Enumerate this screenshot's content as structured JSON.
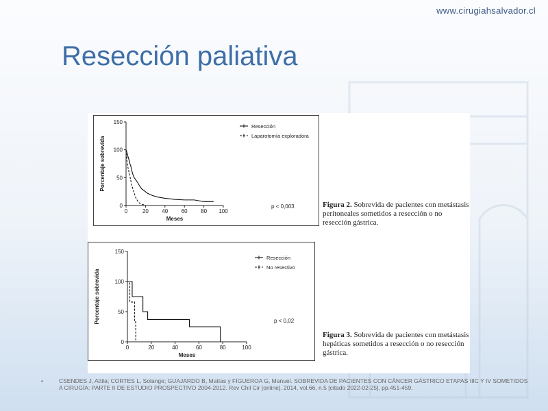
{
  "site": {
    "url": "www.cirugiahsalvador.cl"
  },
  "slide": {
    "title": "Resección paliativa"
  },
  "chart_data": [
    {
      "type": "line",
      "xlabel": "Meses",
      "ylabel": "Porcentaje sobrevida",
      "xlim": [
        0,
        100
      ],
      "ylim": [
        0,
        150
      ],
      "xticks": [
        "0",
        "20",
        "40",
        "60",
        "80",
        "100"
      ],
      "yticks": [
        "0",
        "50",
        "100",
        "150"
      ],
      "legend_position": "top-right",
      "annotation": "p < 0,003",
      "series": [
        {
          "name": "Resección",
          "style": "solid",
          "points": [
            [
              0,
              100
            ],
            [
              1,
              95
            ],
            [
              2,
              88
            ],
            [
              3,
              82
            ],
            [
              4,
              75
            ],
            [
              5,
              70
            ],
            [
              6,
              62
            ],
            [
              7,
              56
            ],
            [
              8,
              51
            ],
            [
              10,
              46
            ],
            [
              12,
              41
            ],
            [
              14,
              35
            ],
            [
              16,
              30
            ],
            [
              19,
              26
            ],
            [
              22,
              22
            ],
            [
              27,
              18
            ],
            [
              33,
              15
            ],
            [
              40,
              13
            ],
            [
              50,
              11
            ],
            [
              60,
              10
            ],
            [
              70,
              10
            ],
            [
              80,
              7
            ],
            [
              90,
              7
            ]
          ]
        },
        {
          "name": "Laparotomía exploradora",
          "style": "dashed",
          "points": [
            [
              0,
              100
            ],
            [
              1,
              80
            ],
            [
              2,
              68
            ],
            [
              4,
              52
            ],
            [
              6,
              36
            ],
            [
              8,
              24
            ],
            [
              10,
              14
            ],
            [
              12,
              8
            ],
            [
              14,
              4
            ],
            [
              17,
              2
            ],
            [
              20,
              0
            ]
          ]
        }
      ],
      "caption_label": "Figura 2.",
      "caption_text": "Sobrevida de pacientes con metástasis peritoneales sometidos a resección o no resección gástrica."
    },
    {
      "type": "line",
      "xlabel": "Meses",
      "ylabel": "Porcentaje sobrevida",
      "xlim": [
        0,
        100
      ],
      "ylim": [
        0,
        150
      ],
      "xticks": [
        "0",
        "20",
        "40",
        "60",
        "80",
        "100"
      ],
      "yticks": [
        "0",
        "50",
        "100",
        "150"
      ],
      "legend_position": "top-right",
      "annotation": "p < 0,02",
      "series": [
        {
          "name": "Resección",
          "style": "solid",
          "points": [
            [
              0,
              100
            ],
            [
              4,
              100
            ],
            [
              4,
              75
            ],
            [
              13,
              75
            ],
            [
              13,
              50
            ],
            [
              17,
              50
            ],
            [
              17,
              37
            ],
            [
              52,
              37
            ],
            [
              52,
              25
            ],
            [
              78,
              25
            ],
            [
              78,
              0
            ]
          ]
        },
        {
          "name": "No resectivo",
          "style": "dashed",
          "points": [
            [
              0,
              100
            ],
            [
              2,
              100
            ],
            [
              2,
              66
            ],
            [
              6,
              66
            ],
            [
              6,
              33
            ],
            [
              7,
              33
            ],
            [
              7,
              0
            ]
          ]
        }
      ],
      "caption_label": "Figura 3.",
      "caption_text": "Sobrevida de pacientes con metástasis hepáticas sometidos a resección o no resección gástrica."
    }
  ],
  "reference": {
    "bullet": "•",
    "text": "CSENDES J, Attila; CORTES L, Solange; GUAJARDO B, Matías  y  FIGUEROA G, Manuel. SOBREVIDA DE PACIENTES CON CÁNCER GÁSTRICO ETAPAS IIIC Y IV SOMETIDOS A CIRUGÍA: PARTE II DE ESTUDIO PROSPECTIVO 2004-2012. Rev Chil Cir [online]. 2014, vol.66, n.5 [citado  2022-02-25], pp.451-459."
  }
}
